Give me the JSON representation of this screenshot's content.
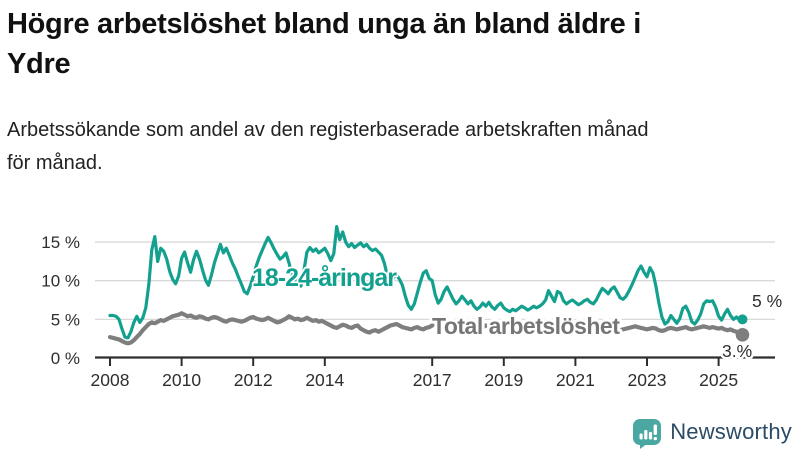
{
  "header": {
    "title_line1": "Högre arbetslöshet bland unga än bland äldre i",
    "title_line2": "Ydre",
    "subtitle_line1": "Arbetssökande som andel av den registerbaserade arbetskraften månad",
    "subtitle_line2": "för månad."
  },
  "footer": {
    "brand": "Newsworthy",
    "logo_icon": "bar-chart-speech-bubble-icon",
    "logo_color": "#4ba7a1",
    "text_color": "#2b4b66"
  },
  "chart_data": {
    "type": "line",
    "title": "Högre arbetslöshet bland unga än bland äldre i Ydre",
    "subtitle": "Arbetssökande som andel av den registerbaserade arbetskraften månad för månad.",
    "x_unit": "month",
    "x_range": [
      "2008-01",
      "2025-09"
    ],
    "x_ticks": [
      2008,
      2010,
      2012,
      2014,
      2017,
      2019,
      2021,
      2023,
      2025
    ],
    "y_ticks": [
      {
        "value": 0,
        "label": "0 %"
      },
      {
        "value": 5,
        "label": "5 %"
      },
      {
        "value": 10,
        "label": "10 %"
      },
      {
        "value": 15,
        "label": "15 %"
      }
    ],
    "ylim": [
      0,
      18
    ],
    "grid": "horizontal",
    "grid_color": "#d9d9d9",
    "axis_color": "#2e2e2e",
    "legend_position": "inline-labels",
    "series": [
      {
        "id": "youth",
        "name": "18-24-åringar",
        "color": "#13a08f",
        "end_label": "5 %",
        "end_value": 5.0,
        "values": [
          5.5,
          5.5,
          5.4,
          5.0,
          3.8,
          2.7,
          2.6,
          3.4,
          4.6,
          5.4,
          4.6,
          5.2,
          6.5,
          9.5,
          14.0,
          15.7,
          12.5,
          14.2,
          13.8,
          12.8,
          11.2,
          10.2,
          9.6,
          10.6,
          12.9,
          13.7,
          12.3,
          11.1,
          12.7,
          13.8,
          12.8,
          11.4,
          10.1,
          9.4,
          10.7,
          12.3,
          13.5,
          14.7,
          13.6,
          14.2,
          13.3,
          12.3,
          11.5,
          10.5,
          9.6,
          8.6,
          8.3,
          9.3,
          10.5,
          11.9,
          13.0,
          13.9,
          14.8,
          15.6,
          14.9,
          14.1,
          13.4,
          12.8,
          13.1,
          13.6,
          12.3,
          10.7,
          9.5,
          10.1,
          9.3,
          11.3,
          13.7,
          14.3,
          13.8,
          14.1,
          13.6,
          13.9,
          14.2,
          13.5,
          12.6,
          13.5,
          17.0,
          15.3,
          16.3,
          15.0,
          14.4,
          14.8,
          14.3,
          14.6,
          14.9,
          14.4,
          14.7,
          14.2,
          13.9,
          14.1,
          13.7,
          13.3,
          12.2,
          10.6,
          9.8,
          10.4,
          10.8,
          10.2,
          9.4,
          8.0,
          6.8,
          6.3,
          7.0,
          8.4,
          9.8,
          11.0,
          11.3,
          10.3,
          10.0,
          8.2,
          7.1,
          7.6,
          8.6,
          9.2,
          8.4,
          7.6,
          7.0,
          7.4,
          8.0,
          7.5,
          7.0,
          7.4,
          6.7,
          6.3,
          6.6,
          7.1,
          6.7,
          7.2,
          6.6,
          6.3,
          6.8,
          7.1,
          6.5,
          6.2,
          6.0,
          6.3,
          6.1,
          6.4,
          6.7,
          6.5,
          6.2,
          6.4,
          6.7,
          6.5,
          6.7,
          7.0,
          7.5,
          8.7,
          8.0,
          7.3,
          8.6,
          8.4,
          7.4,
          7.0,
          7.3,
          7.5,
          7.2,
          6.9,
          7.1,
          7.4,
          7.6,
          7.2,
          7.0,
          7.5,
          8.3,
          9.0,
          8.7,
          8.3,
          8.9,
          9.2,
          8.5,
          7.8,
          7.6,
          8.0,
          8.7,
          9.5,
          10.4,
          11.3,
          11.9,
          11.1,
          10.5,
          11.7,
          11.0,
          9.3,
          7.1,
          5.3,
          4.4,
          4.7,
          5.5,
          5.0,
          4.5,
          5.1,
          6.4,
          6.7,
          5.9,
          4.7,
          4.4,
          4.9,
          5.7,
          7.0,
          7.4,
          7.3,
          7.4,
          6.6,
          5.4,
          4.9,
          5.7,
          6.3,
          5.5,
          5.0,
          5.3,
          4.9,
          5.0
        ]
      },
      {
        "id": "total",
        "name": "Total arbetslöshet",
        "color": "#7e7e7e",
        "end_label": "3.%",
        "end_value": 3.0,
        "values": [
          2.7,
          2.6,
          2.5,
          2.4,
          2.2,
          2.0,
          1.9,
          2.0,
          2.3,
          2.7,
          3.1,
          3.6,
          4.0,
          4.4,
          4.6,
          4.5,
          4.7,
          4.9,
          4.8,
          5.0,
          5.2,
          5.4,
          5.5,
          5.6,
          5.8,
          5.6,
          5.4,
          5.5,
          5.3,
          5.2,
          5.4,
          5.3,
          5.1,
          5.0,
          5.2,
          5.3,
          5.2,
          5.0,
          4.8,
          4.7,
          4.9,
          5.0,
          4.9,
          4.8,
          4.7,
          4.8,
          5.0,
          5.2,
          5.3,
          5.1,
          5.0,
          4.9,
          5.0,
          5.2,
          5.0,
          4.8,
          4.6,
          4.7,
          4.9,
          5.1,
          5.4,
          5.2,
          5.0,
          5.1,
          4.9,
          5.0,
          5.2,
          5.0,
          4.8,
          4.9,
          4.7,
          4.8,
          4.6,
          4.4,
          4.2,
          4.0,
          3.9,
          4.1,
          4.3,
          4.2,
          4.0,
          3.9,
          4.1,
          4.2,
          3.8,
          3.6,
          3.4,
          3.3,
          3.5,
          3.6,
          3.4,
          3.6,
          3.8,
          4.0,
          4.2,
          4.3,
          4.4,
          4.2,
          4.0,
          3.9,
          3.8,
          3.7,
          3.9,
          4.0,
          3.8,
          3.7,
          3.9,
          4.0,
          4.2,
          4.5,
          4.7,
          4.6,
          4.4,
          4.3,
          4.5,
          4.4,
          4.2,
          4.3,
          4.5,
          4.4,
          4.3,
          4.1,
          4.0,
          4.1,
          3.9,
          4.0,
          4.2,
          4.1,
          3.9,
          4.0,
          4.1,
          4.0,
          3.9,
          3.8,
          3.9,
          4.0,
          3.9,
          3.8,
          4.0,
          4.1,
          4.0,
          3.9,
          4.0,
          4.1,
          4.2,
          4.3,
          4.5,
          4.7,
          4.6,
          4.5,
          4.6,
          4.5,
          4.4,
          4.3,
          4.2,
          4.3,
          4.2,
          4.1,
          4.0,
          3.9,
          4.0,
          3.9,
          3.8,
          3.9,
          4.0,
          3.9,
          3.8,
          3.9,
          3.8,
          3.9,
          3.7,
          3.6,
          3.7,
          3.8,
          3.9,
          4.0,
          4.1,
          4.0,
          3.9,
          3.8,
          3.7,
          3.8,
          3.9,
          3.8,
          3.6,
          3.5,
          3.6,
          3.8,
          3.9,
          3.8,
          3.7,
          3.8,
          3.9,
          4.0,
          3.8,
          3.7,
          3.8,
          3.9,
          4.0,
          4.1,
          4.0,
          3.9,
          4.0,
          3.9,
          3.8,
          3.9,
          3.7,
          3.6,
          3.7,
          3.5,
          3.4,
          3.2,
          3.0
        ]
      }
    ]
  }
}
